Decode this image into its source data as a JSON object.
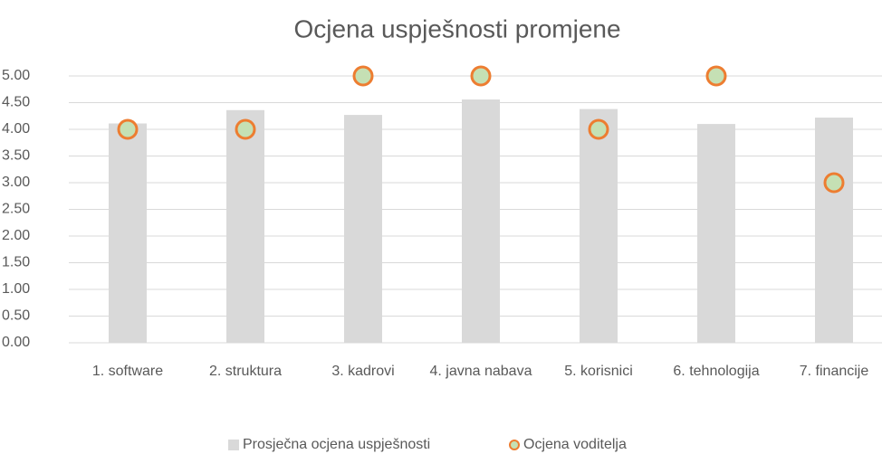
{
  "chart_data": {
    "type": "bar",
    "title": "Ocjena uspješnosti promjene",
    "categories": [
      "1. software",
      "2. struktura",
      "3. kadrovi",
      "4. javna nabava",
      "5. korisnici",
      "6. tehnologija",
      "7. financije"
    ],
    "series": [
      {
        "name": "Prosječna ocjena uspješnosti",
        "type": "bar",
        "color": "#d9d9d9",
        "values": [
          4.11,
          4.36,
          4.27,
          4.56,
          4.38,
          4.1,
          4.22
        ]
      },
      {
        "name": "Ocjena voditelja",
        "type": "scatter",
        "color": "#c5e0b4",
        "edge_color": "#ed7d31",
        "values": [
          4,
          4,
          5,
          5,
          4,
          5,
          3
        ]
      }
    ],
    "ylim": [
      0,
      5
    ],
    "yticks": [
      {
        "value": 0,
        "label": "0.00"
      },
      {
        "value": 0.5,
        "label": "0.50"
      },
      {
        "value": 1,
        "label": "1.00"
      },
      {
        "value": 1.5,
        "label": "1.50"
      },
      {
        "value": 2,
        "label": "2.00"
      },
      {
        "value": 2.5,
        "label": "2.50"
      },
      {
        "value": 3,
        "label": "3.00"
      },
      {
        "value": 3.5,
        "label": "3.50"
      },
      {
        "value": 4,
        "label": "4.00"
      },
      {
        "value": 4.5,
        "label": "4.50"
      },
      {
        "value": 5,
        "label": "5.00"
      }
    ],
    "grid": true,
    "legend": "bottom"
  }
}
